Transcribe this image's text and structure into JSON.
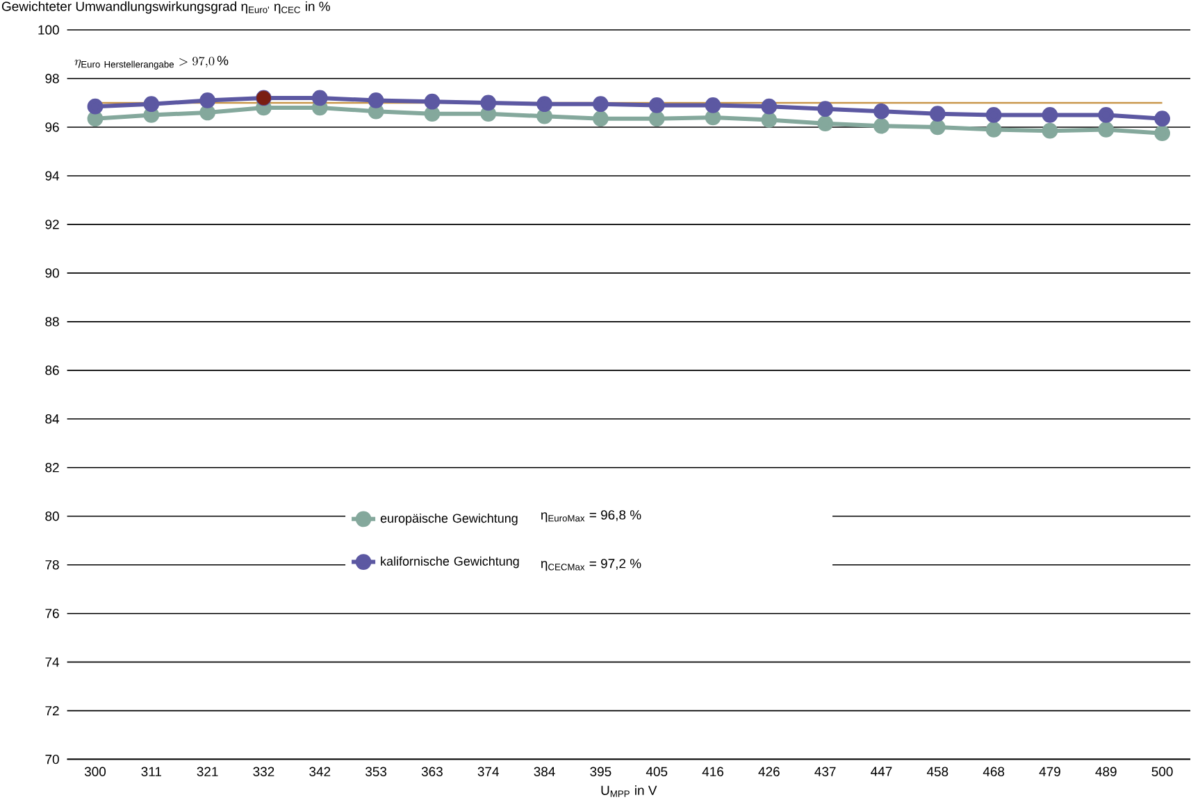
{
  "chart_data": {
    "type": "line",
    "ylabel": "Gewichteter Umwandlungswirkungsgrad η$_{Euro'}$ η$_{CEC}$ in %",
    "xlabel": "U$_{MPP}$ in V",
    "categories": [
      "300",
      "311",
      "321",
      "332",
      "342",
      "353",
      "363",
      "374",
      "384",
      "395",
      "405",
      "416",
      "426",
      "437",
      "447",
      "458",
      "468",
      "479",
      "489",
      "500"
    ],
    "series": [
      {
        "name": "europäische Gewichtung",
        "color": "#84a89c",
        "values": [
          96.35,
          96.5,
          96.6,
          96.8,
          96.8,
          96.65,
          96.55,
          96.55,
          96.45,
          96.35,
          96.35,
          96.4,
          96.3,
          96.15,
          96.05,
          96.0,
          95.9,
          95.85,
          95.9,
          95.75
        ]
      },
      {
        "name": "kalifornische Gewichtung",
        "color": "#5c58a2",
        "values": [
          96.85,
          96.95,
          97.1,
          97.2,
          97.2,
          97.1,
          97.05,
          97.0,
          96.95,
          96.95,
          96.9,
          96.9,
          96.85,
          96.75,
          96.65,
          96.55,
          96.5,
          96.5,
          96.5,
          96.35
        ]
      },
      {
        "type": "scatter",
        "color": "#7a1e12",
        "x": [
          "332"
        ],
        "values": [
          97.2
        ]
      }
    ],
    "annotations": [
      "η$_{EuroMax}$ = 96,8 %",
      "η$_{CECMax}$ = 97,2 %"
    ],
    "ref_lines": [
      {
        "axis": "y",
        "value": 97.0,
        "label": "\\eta_{\\mathrm{Euro\\ Herstellerangabe}} > 97{,}0\\,\\%",
        "color": "#c8964a"
      }
    ],
    "ylim": [
      70,
      100
    ],
    "yticks": [
      70,
      72,
      74,
      76,
      78,
      80,
      82,
      84,
      86,
      88,
      90,
      92,
      94,
      96,
      98,
      100
    ],
    "grid": "y",
    "legend": "center",
    "marker": "circle",
    "line_style": "solid"
  }
}
